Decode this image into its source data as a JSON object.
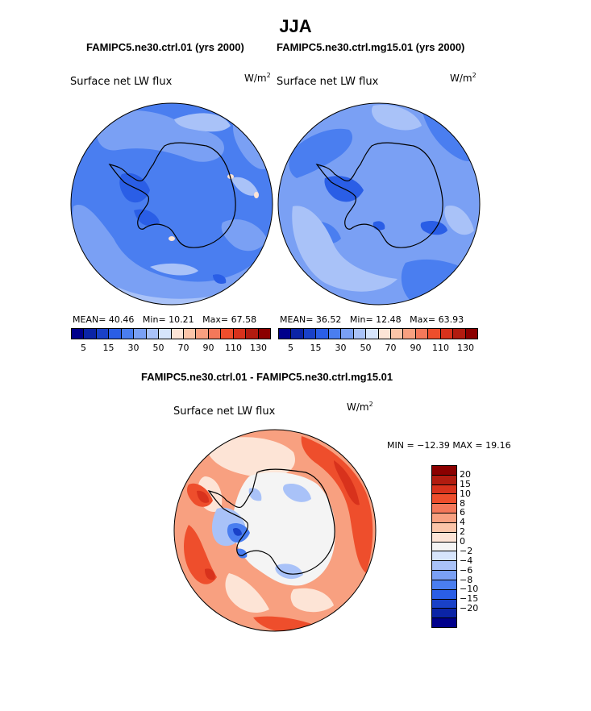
{
  "figure": {
    "title": "JJA",
    "left_title": "FAMIPC5.ne30.ctrl.01 (yrs 2000)",
    "right_title": "FAMIPC5.ne30.ctrl.mg15.01 (yrs 2000)",
    "diff_title": "FAMIPC5.ne30.ctrl.01 - FAMIPC5.ne30.ctrl.mg15.01"
  },
  "panels": {
    "left": {
      "label": "Surface net LW flux",
      "unit_base": "W/m",
      "unit_exp": "2",
      "mean_label": "MEAN=",
      "mean": "40.46",
      "min_label": "Min=",
      "min": "10.21",
      "max_label": "Max=",
      "max": "67.58"
    },
    "right": {
      "label": "Surface net LW flux",
      "unit_base": "W/m",
      "unit_exp": "2",
      "mean_label": "MEAN=",
      "mean": "36.52",
      "min_label": "Min=",
      "min": "12.48",
      "max_label": "Max=",
      "max": "63.93"
    },
    "diff": {
      "label": "Surface net LW flux",
      "unit_base": "W/m",
      "unit_exp": "2",
      "minmax_text": "MIN = −12.39  MAX =   19.16"
    }
  },
  "legend_abs": {
    "colors": [
      "#00008b",
      "#0b24a6",
      "#1941c8",
      "#2a5ee6",
      "#4a7ef0",
      "#7aa0f4",
      "#a9c2f8",
      "#d6e4fb",
      "#fde4d6",
      "#fbc4a8",
      "#f8a080",
      "#f4785a",
      "#ee4e2c",
      "#d8321c",
      "#b21c10",
      "#8b0000"
    ],
    "ticks": [
      "5",
      "15",
      "30",
      "50",
      "70",
      "90",
      "110",
      "130"
    ]
  },
  "legend_diff": {
    "colors": [
      "#8b0000",
      "#b21c10",
      "#d8321c",
      "#ee4e2c",
      "#f4785a",
      "#f8a080",
      "#fbc4a8",
      "#fde4d6",
      "#f4f4f4",
      "#d6e4fb",
      "#a9c2f8",
      "#7aa0f4",
      "#4a7ef0",
      "#2a5ee6",
      "#1941c8",
      "#0b24a6",
      "#00008b"
    ],
    "ticks": [
      "20",
      "15",
      "10",
      "8",
      "6",
      "4",
      "2",
      "0",
      "−2",
      "−4",
      "−6",
      "−8",
      "−10",
      "−15",
      "−20"
    ]
  }
}
